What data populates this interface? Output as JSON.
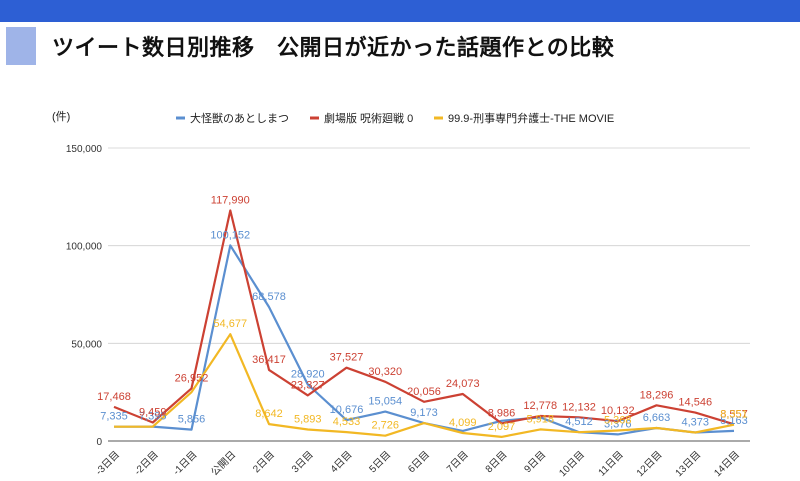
{
  "header": {
    "title": "ツイート数日別推移　公開日が近かった話題作との比較"
  },
  "colors": {
    "topbar": "#2d5fd4",
    "accent": "#9fb4e8",
    "series": [
      "#5b8fd0",
      "#cc4133",
      "#f2b824"
    ]
  },
  "chart_data": {
    "type": "line",
    "title": "",
    "ylabel": "(件)",
    "xlabel": "",
    "ylim": [
      0,
      150000
    ],
    "yticks": [
      0,
      50000,
      100000,
      150000
    ],
    "ytick_labels": [
      "0",
      "50,000",
      "100,000",
      "150,000"
    ],
    "grid": true,
    "legend_position": "top",
    "categories": [
      "-3日目",
      "-2日目",
      "-1日目",
      "公開日",
      "2日目",
      "3日目",
      "4日目",
      "5日目",
      "6日目",
      "7日目",
      "8日目",
      "9日目",
      "10日目",
      "11日目",
      "12日目",
      "13日目",
      "14日目"
    ],
    "series": [
      {
        "name": "大怪獣のあとしまつ",
        "color": "#5b8fd0",
        "values": [
          7335,
          7395,
          5856,
          100152,
          68578,
          28920,
          10676,
          15054,
          9173,
          5162,
          10333,
          12059,
          4512,
          3376,
          6663,
          4373,
          5163
        ],
        "labels": [
          "7,335",
          "7,395",
          "5,856",
          "100,152",
          "68,578",
          "28,920",
          "10,676",
          "15,054",
          "9,173",
          "",
          "",
          "",
          "4,512",
          "3,376",
          "6,663",
          "4,373",
          "5,163"
        ]
      },
      {
        "name": "劇場版 呪術廻戦 0",
        "color": "#cc4133",
        "values": [
          17468,
          9459,
          26952,
          117990,
          36417,
          23327,
          37527,
          30320,
          20056,
          24073,
          8986,
          12778,
          12132,
          10132,
          18296,
          14546,
          8557
        ],
        "labels": [
          "17,468",
          "9,459",
          "26,952",
          "117,990",
          "36,417",
          "23,327",
          "37,527",
          "30,320",
          "20,056",
          "24,073",
          "8,986",
          "12,778",
          "12,132",
          "10,132",
          "18,296",
          "14,546",
          "8,557"
        ]
      },
      {
        "name": "99.9-刑事専門弁護士-THE MOVIE",
        "color": "#f2b824",
        "values": [
          7335,
          7395,
          25000,
          54677,
          8642,
          5893,
          4533,
          2726,
          9173,
          4099,
          2097,
          5918,
          4512,
          5368,
          6663,
          4373,
          8351
        ],
        "labels": [
          "",
          "",
          "",
          "54,677",
          "8,642",
          "5,893",
          "4,533",
          "2,726",
          "",
          "4,099",
          "2,097",
          "5,918",
          "",
          "5,368",
          "",
          "",
          "8,351"
        ]
      }
    ]
  }
}
